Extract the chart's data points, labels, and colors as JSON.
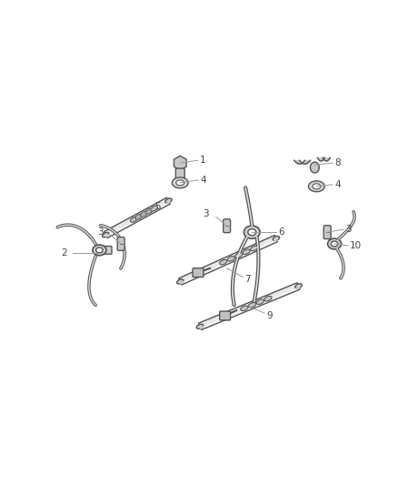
{
  "background_color": "#ffffff",
  "fig_width": 4.38,
  "fig_height": 5.33,
  "dpi": 100,
  "component_color": "#888888",
  "edge_color": "#555555",
  "component_lw": 1.0,
  "label_color": "#444444",
  "label_fontsize": 7.5,
  "leader_color": "#999999"
}
